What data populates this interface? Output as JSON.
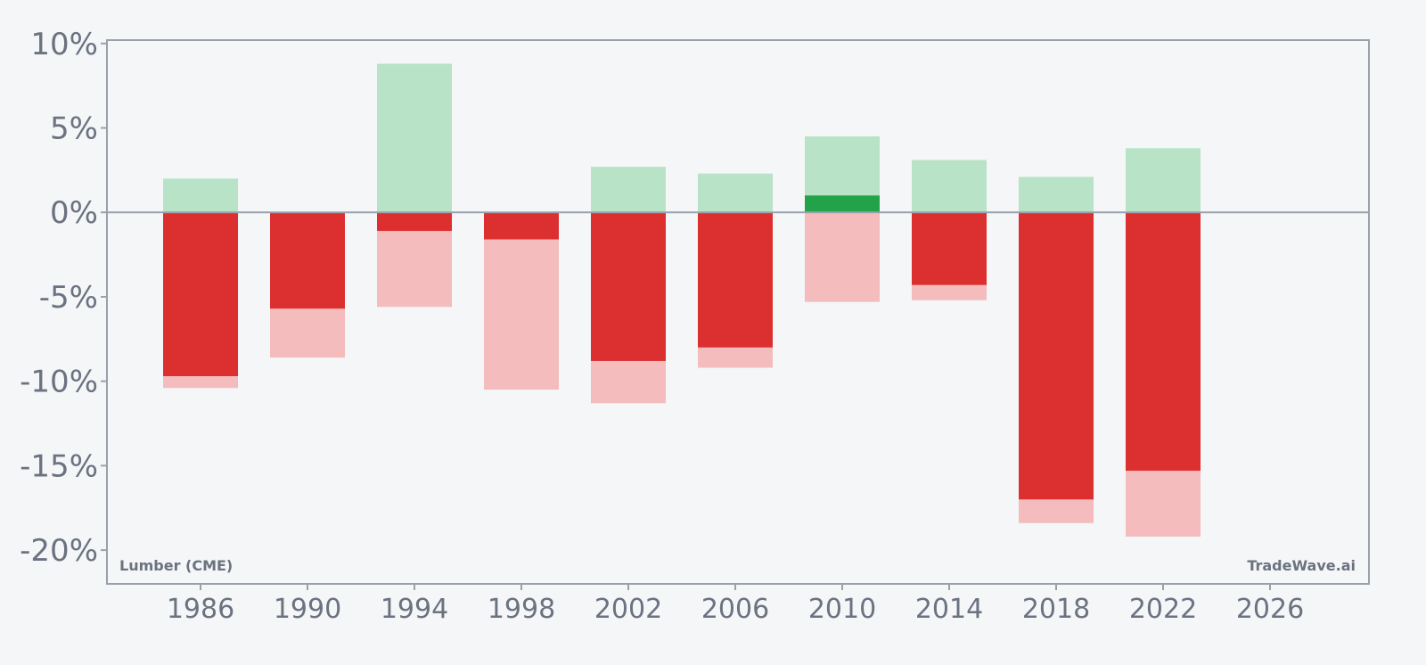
{
  "chart_data": {
    "type": "bar",
    "title": "",
    "xlabel": "",
    "ylabel": "",
    "x_ticks": [
      "1986",
      "1990",
      "1994",
      "1998",
      "2002",
      "2006",
      "2010",
      "2014",
      "2018",
      "2022",
      "2026"
    ],
    "xlim": [
      1982.5,
      2029.7
    ],
    "y_ticks": [
      "10%",
      "5%",
      "0%",
      "-5%",
      "-10%",
      "-15%",
      "-20%"
    ],
    "y_tick_values": [
      10,
      5,
      0,
      -5,
      -10,
      -15,
      -20
    ],
    "ylim": [
      -22,
      10.2
    ],
    "grid": false,
    "bars": [
      {
        "x": 1986,
        "range_high": 2.0,
        "range_low": -10.4,
        "value": -9.7
      },
      {
        "x": 1990,
        "range_high": 0.0,
        "range_low": -8.6,
        "value": -5.7
      },
      {
        "x": 1994,
        "range_high": 8.8,
        "range_low": -5.6,
        "value": -1.1
      },
      {
        "x": 1998,
        "range_high": 0.0,
        "range_low": -10.5,
        "value": -1.6
      },
      {
        "x": 2002,
        "range_high": 2.7,
        "range_low": -11.3,
        "value": -8.8
      },
      {
        "x": 2006,
        "range_high": 2.3,
        "range_low": -9.2,
        "value": -8.0
      },
      {
        "x": 2010,
        "range_high": 4.5,
        "range_low": -5.3,
        "value": 1.0
      },
      {
        "x": 2014,
        "range_high": 3.1,
        "range_low": -5.2,
        "value": -4.3
      },
      {
        "x": 2018,
        "range_high": 2.1,
        "range_low": -18.4,
        "value": -17.0
      },
      {
        "x": 2022,
        "range_high": 3.8,
        "range_low": -19.2,
        "value": -15.3
      }
    ],
    "colors": {
      "positive": "#22a34a",
      "positive_light": "#b8e3c6",
      "negative": "#dc3030",
      "negative_light": "#f4bcbc",
      "axis": "#9aa1ad",
      "text": "#6b7280"
    },
    "annotations": {
      "bottom_left": "Lumber (CME)",
      "bottom_right": "TradeWave.ai"
    }
  }
}
